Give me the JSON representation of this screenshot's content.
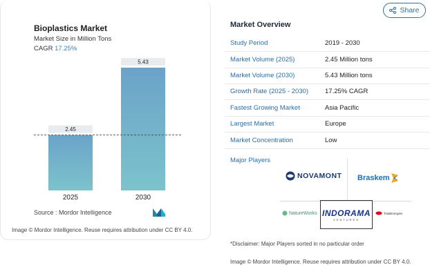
{
  "chart": {
    "title": "Bioplastics Market",
    "subtitle": "Market Size in Million Tons",
    "cagr_label": "CAGR",
    "cagr_value": "17.25%",
    "source": "Source :  Mordor Intelligence",
    "attribution": "Image © Mordor Intelligence. Reuse requires attribution under CC BY 4.0."
  },
  "chart_data": {
    "type": "bar",
    "categories": [
      "2025",
      "2030"
    ],
    "values": [
      2.45,
      5.43
    ],
    "data_labels": [
      "2.45",
      "5.43"
    ],
    "title": "Bioplastics Market",
    "ylabel": "Market Size in Million Tons",
    "ylim": [
      0,
      5.43
    ],
    "grid": false,
    "reference_line": "dashed line at 2025 value",
    "colors": [
      "#6ba3c9",
      "#7cc3cc"
    ]
  },
  "share": {
    "label": "Share",
    "icon": "share-icon",
    "color": "#2f6f9c"
  },
  "overview": {
    "title": "Market Overview",
    "rows": [
      {
        "key": "Study Period",
        "value": "2019 - 2030"
      },
      {
        "key": "Market Volume (2025)",
        "value": "2.45 Million tons"
      },
      {
        "key": "Market Volume (2030)",
        "value": "5.43 Million tons"
      },
      {
        "key": "Growth Rate (2025 - 2030)",
        "value": "17.25% CAGR"
      },
      {
        "key": "Fastest Growing Market",
        "value": "Asia Pacific"
      },
      {
        "key": "Largest Market",
        "value": "Europe"
      },
      {
        "key": "Market Concentration",
        "value": "Low"
      }
    ]
  },
  "players": {
    "title": "Major Players",
    "novamont": "NOVAMONT",
    "braskem": "Braskem",
    "natureworks": "NatureWorks",
    "indorama": "INDORAMA",
    "indorama_sub": "VENTURES",
    "totalenergies": "TotalEnergies"
  },
  "disclaimer": "*Disclaimer: Major Players sorted in no particular order",
  "attribution_right": "Image © Mordor Intelligence. Reuse requires attribution under CC BY 4.0."
}
